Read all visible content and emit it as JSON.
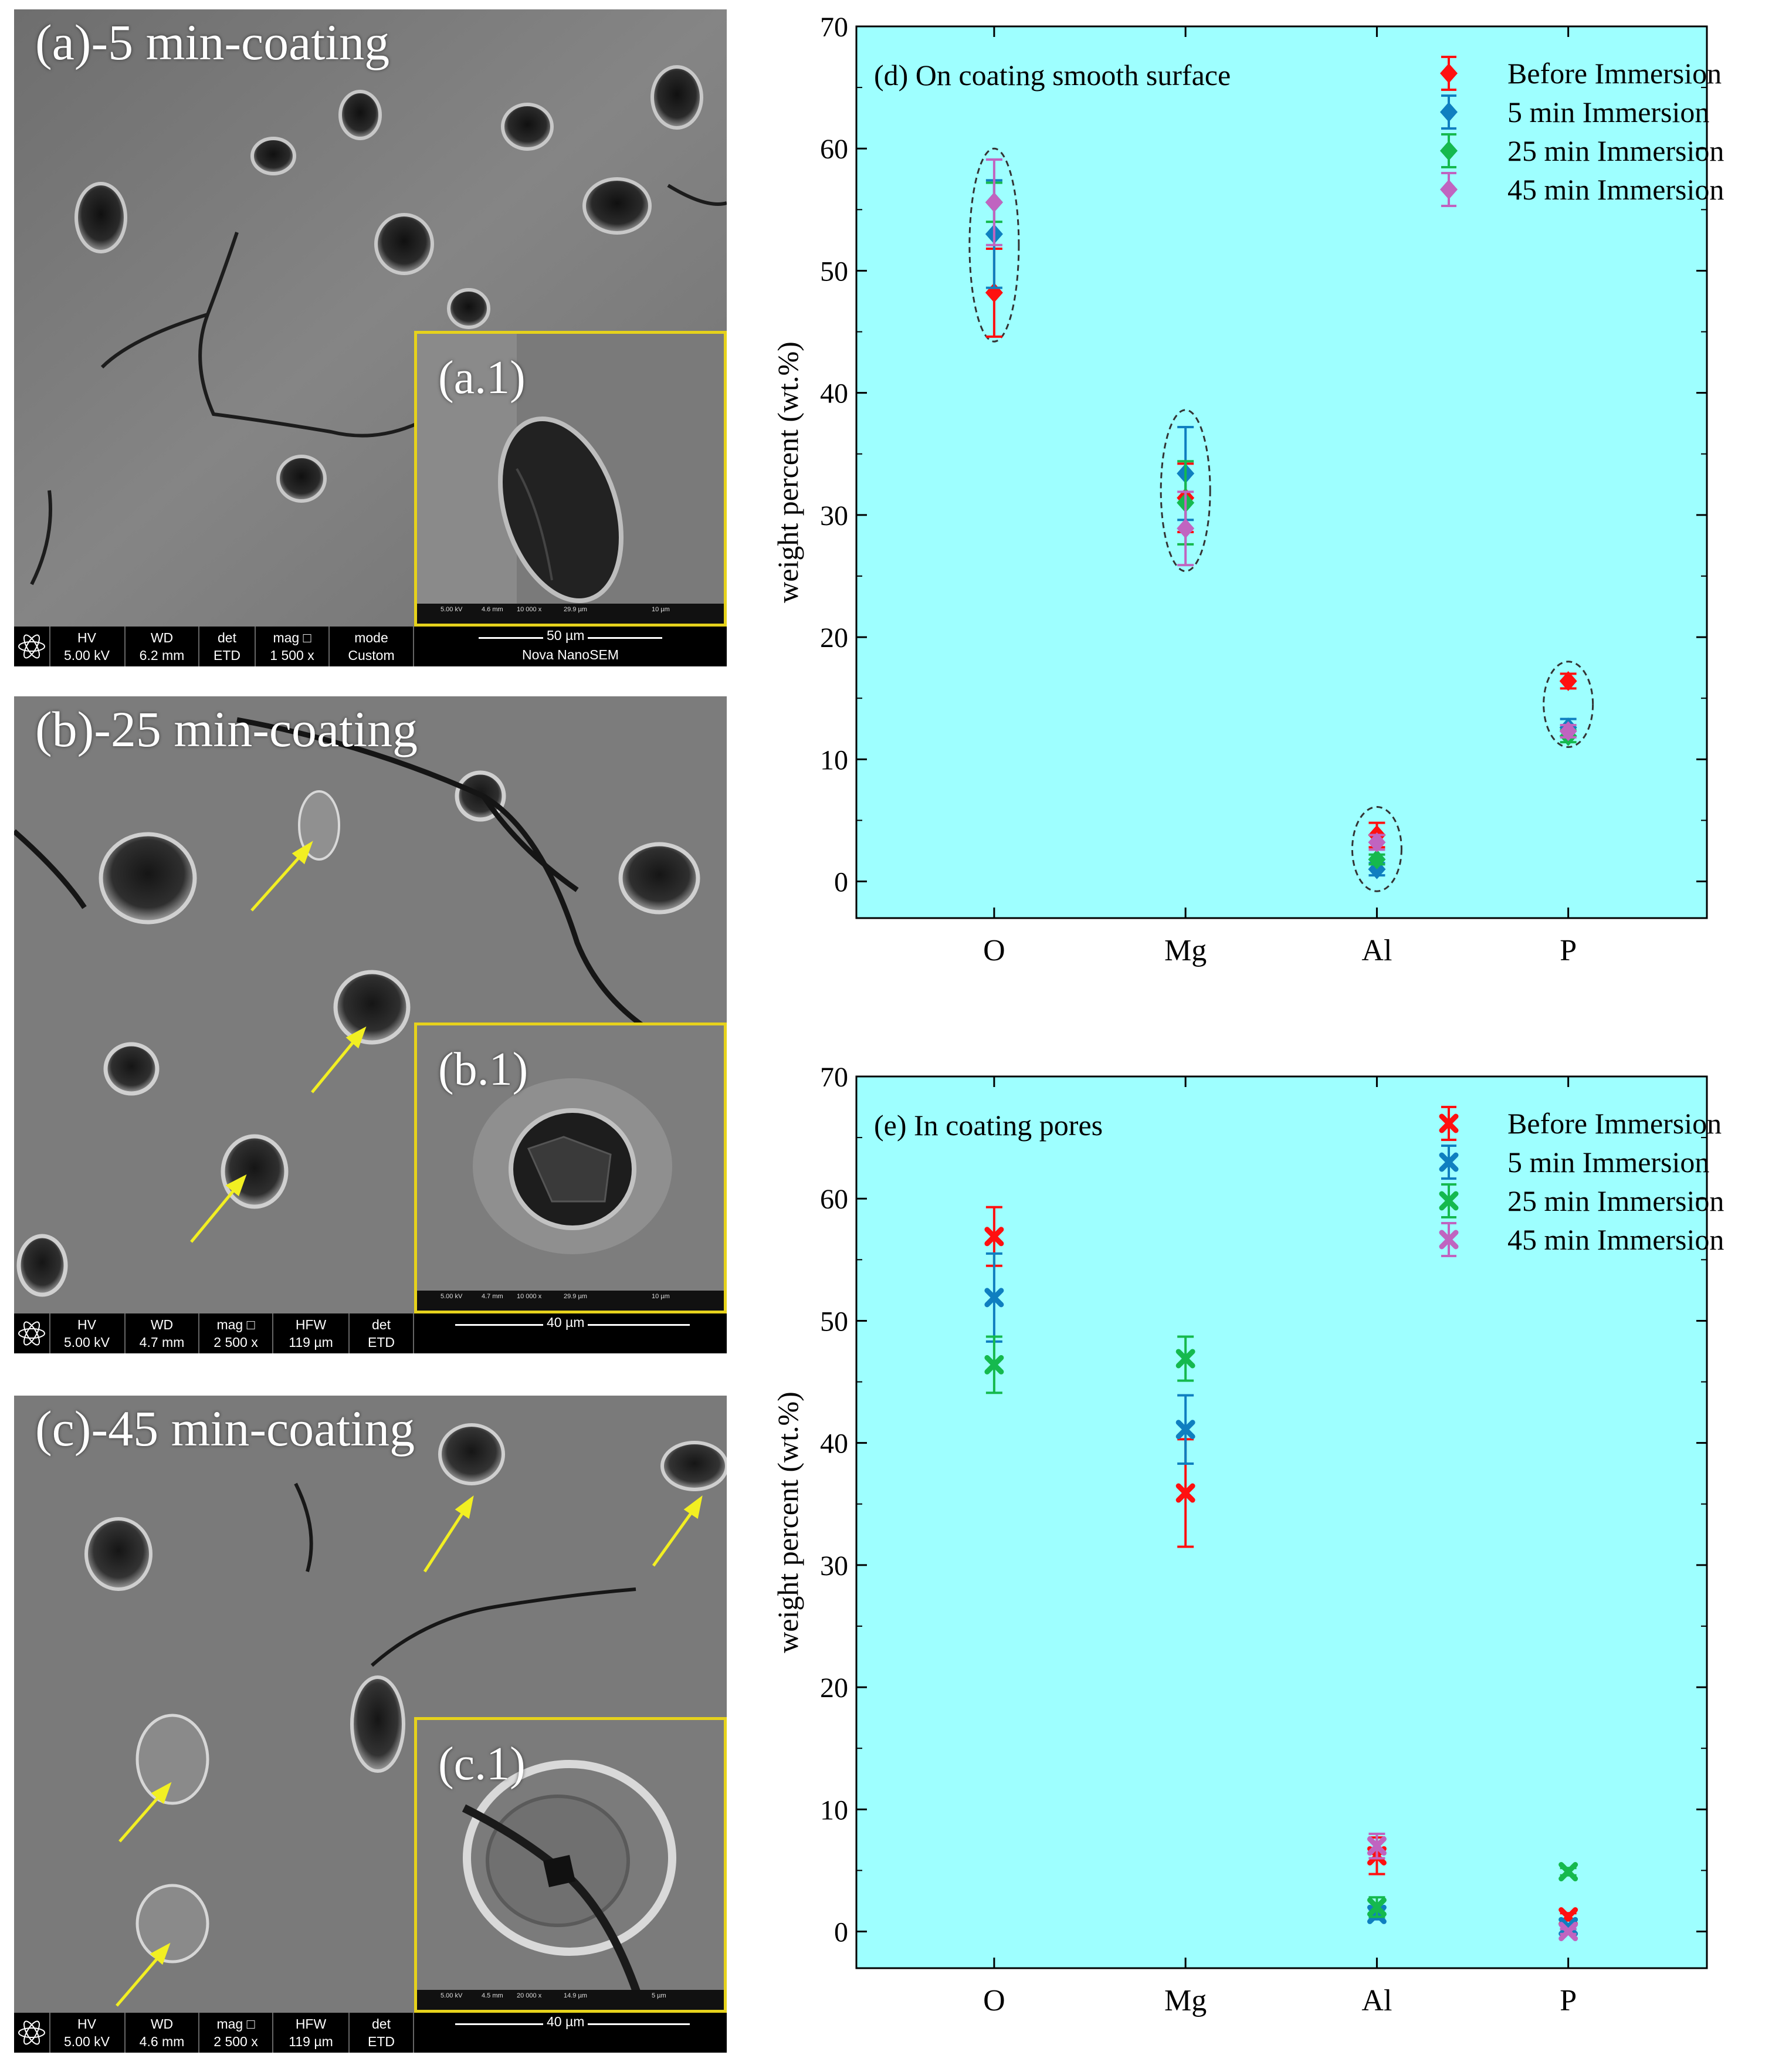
{
  "figure": {
    "colors": {
      "plot_bg": "#9effff",
      "inset_border": "#e6d21c",
      "arrow": "#f2ef22",
      "infobar_bg": "#000000"
    },
    "panels": [
      {
        "label": "(a)-5 min-coating",
        "inset_label": "(a.1)",
        "info": {
          "hv_key": "HV",
          "hv": "5.00 kV",
          "wd_key": "WD",
          "wd": "6.2 mm",
          "det_key": "det",
          "det": "ETD",
          "mag_key": "mag □",
          "mag": "1 500 x",
          "extra_key": "mode",
          "extra": "Custom"
        },
        "scale": "50 µm",
        "scale_foot": "Nova NanoSEM",
        "inset_info": {
          "hv": "5.00 kV",
          "wd": "4.6 mm",
          "mag": "10 000 x",
          "hfw": "29.9 µm",
          "scale": "10 µm"
        },
        "arrow_count": 0
      },
      {
        "label": "(b)-25 min-coating",
        "inset_label": "(b.1)",
        "info": {
          "hv_key": "HV",
          "hv": "5.00 kV",
          "wd_key": "WD",
          "wd": "4.7 mm",
          "mag_key": "mag □",
          "mag": "2 500 x",
          "hfw_key": "HFW",
          "hfw": "119 µm",
          "det_key": "det",
          "det": "ETD"
        },
        "scale": "40 µm",
        "inset_info": {
          "hv": "5.00 kV",
          "wd": "4.7 mm",
          "mag": "10 000 x",
          "hfw": "29.9 µm",
          "scale": "10 µm"
        },
        "arrow_count": 4
      },
      {
        "label": "(c)-45 min-coating",
        "inset_label": "(c.1)",
        "info": {
          "hv_key": "HV",
          "hv": "5.00 kV",
          "wd_key": "WD",
          "wd": "4.6 mm",
          "mag_key": "mag □",
          "mag": "2 500 x",
          "hfw_key": "HFW",
          "hfw": "119 µm",
          "det_key": "det",
          "det": "ETD"
        },
        "scale": "40 µm",
        "inset_info": {
          "hv": "5.00 kV",
          "wd": "4.5 mm",
          "mag": "20 000 x",
          "hfw": "14.9 µm",
          "scale": "5 µm"
        },
        "arrow_count": 4
      }
    ]
  },
  "chart_data": [
    {
      "type": "scatter",
      "title": "(d) On coating smooth surface",
      "marker": "diamond",
      "ylabel": "weight percent (wt.%)",
      "xlabel": "",
      "categories": [
        "O",
        "Mg",
        "Al",
        "P"
      ],
      "ylim": [
        -3,
        70
      ],
      "yticks": [
        0,
        10,
        20,
        30,
        40,
        50,
        60,
        70
      ],
      "grid": false,
      "legend_position": "top-right",
      "series": [
        {
          "name": "Before Immersion",
          "color": "#ff1010",
          "values": [
            48.2,
            31.4,
            3.8,
            16.4
          ],
          "errors": [
            3.6,
            2.8,
            1.0,
            0.6
          ]
        },
        {
          "name": "5 min Immersion",
          "color": "#0f7fc0",
          "values": [
            53.0,
            33.4,
            1.0,
            12.6
          ],
          "errors": [
            4.4,
            3.8,
            0.5,
            0.7
          ]
        },
        {
          "name": "25 min Immersion",
          "color": "#15b94e",
          "values": [
            55.6,
            31.0,
            1.8,
            11.9
          ],
          "errors": [
            1.6,
            3.4,
            0.4,
            0.5
          ]
        },
        {
          "name": "45 min Immersion",
          "color": "#c064c0",
          "values": [
            55.6,
            28.9,
            3.2,
            12.3
          ],
          "errors": [
            3.5,
            3.0,
            0.6,
            0.5
          ]
        }
      ],
      "ellipses": [
        {
          "category": "O",
          "y_range": [
            44.2,
            60.0
          ]
        },
        {
          "category": "Mg",
          "y_range": [
            25.4,
            38.6
          ]
        },
        {
          "category": "Al",
          "y_range": [
            -0.8,
            6.1
          ]
        },
        {
          "category": "P",
          "y_range": [
            11.0,
            18.0
          ]
        }
      ]
    },
    {
      "type": "scatter",
      "title": "(e) In coating pores",
      "marker": "x",
      "ylabel": "weight percent (wt.%)",
      "xlabel": "",
      "categories": [
        "O",
        "Mg",
        "Al",
        "P"
      ],
      "ylim": [
        -3,
        70
      ],
      "yticks": [
        0,
        10,
        20,
        30,
        40,
        50,
        60,
        70
      ],
      "grid": false,
      "legend_position": "top-right",
      "series": [
        {
          "name": "Before Immersion",
          "color": "#ff1010",
          "values": [
            56.9,
            35.9,
            6.2,
            1.2
          ],
          "errors": [
            2.4,
            4.4,
            1.5,
            0.3
          ]
        },
        {
          "name": "5 min Immersion",
          "color": "#0f7fc0",
          "values": [
            51.9,
            41.1,
            1.4,
            0.4
          ],
          "errors": [
            3.6,
            2.8,
            0.4,
            0.2
          ]
        },
        {
          "name": "25 min Immersion",
          "color": "#15b94e",
          "values": [
            46.4,
            46.9,
            2.0,
            4.9
          ],
          "errors": [
            2.3,
            1.8,
            0.8,
            0.3
          ]
        },
        {
          "name": "45 min Immersion",
          "color": "#c064c0",
          "values": [
            null,
            null,
            7.0,
            0.0
          ],
          "errors": [
            null,
            null,
            1.0,
            0.2
          ]
        }
      ]
    }
  ]
}
